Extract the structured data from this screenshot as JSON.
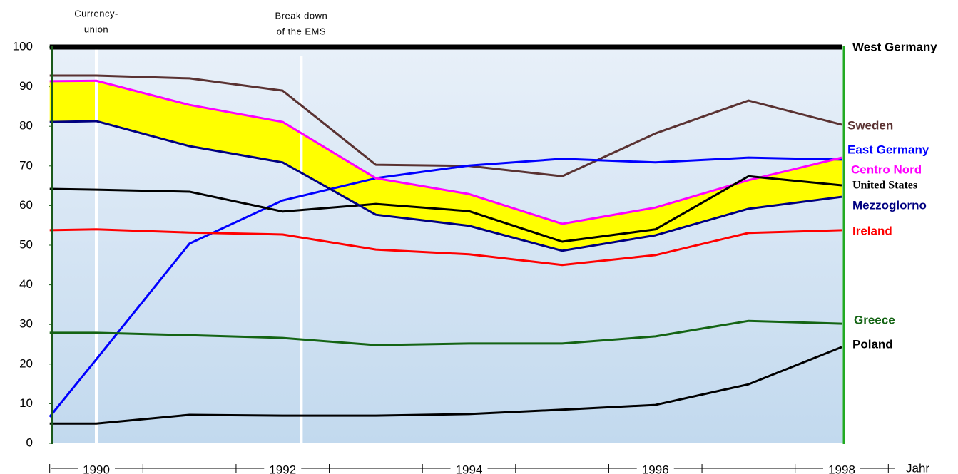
{
  "chart_data": {
    "type": "line",
    "x": [
      1989.5,
      1990,
      1991,
      1992,
      1993,
      1994,
      1995,
      1996,
      1997,
      1998
    ],
    "xlim": [
      1989.5,
      1998
    ],
    "xticks": [
      1990,
      1992,
      1994,
      1996,
      1998
    ],
    "x_label": "Jahr",
    "ylim": [
      0,
      100
    ],
    "yticks": [
      0,
      10,
      20,
      30,
      40,
      50,
      60,
      70,
      80,
      90,
      100
    ],
    "annotations": [
      {
        "lines": [
          "Currency-",
          "union"
        ],
        "x": 1990
      },
      {
        "lines": [
          "Break down",
          "of the EMS"
        ],
        "x": 1992.2
      }
    ],
    "band": {
      "between": [
        "Centro Nord",
        "Mezzoglorno"
      ],
      "color": "#ffff00"
    },
    "series": [
      {
        "name": "West Germany",
        "color": "#000000",
        "values": [
          100,
          100,
          100,
          100,
          100,
          100,
          100,
          100,
          100,
          100
        ]
      },
      {
        "name": "Sweden",
        "color": "#5a3232",
        "values": [
          92.8,
          92.8,
          92.1,
          89,
          70.3,
          70,
          67.4,
          78.2,
          86.5,
          80.4
        ]
      },
      {
        "name": "East Germany",
        "color": "#0000ff",
        "values": [
          6.7,
          21.2,
          50.4,
          61.3,
          66.9,
          70.1,
          71.8,
          70.9,
          72.1,
          71.6
        ]
      },
      {
        "name": "Centro Nord",
        "color": "#ff00ff",
        "values": [
          91.4,
          91.5,
          85.4,
          81.1,
          66.9,
          62.9,
          55.4,
          59.5,
          66.4,
          72.1
        ]
      },
      {
        "name": "United States",
        "color": "#000000",
        "values": [
          64.2,
          64,
          63.5,
          58.5,
          60.4,
          58.6,
          50.9,
          54,
          67.4,
          65.1
        ]
      },
      {
        "name": "Mezzoglorno",
        "color": "#000080",
        "values": [
          81.1,
          81.3,
          75,
          70.9,
          57.7,
          54.9,
          48.6,
          52.5,
          59.2,
          62.2
        ]
      },
      {
        "name": "Ireland",
        "color": "#ff0000",
        "values": [
          53.8,
          54,
          53.2,
          52.7,
          48.9,
          47.7,
          45,
          47.5,
          53.1,
          53.8
        ]
      },
      {
        "name": "Greece",
        "color": "#146414",
        "values": [
          27.9,
          27.9,
          27.3,
          26.6,
          24.8,
          25.2,
          25.2,
          27,
          30.9,
          30.2
        ]
      },
      {
        "name": "Poland",
        "color": "#000000",
        "values": [
          5,
          5,
          7.2,
          7,
          7,
          7.4,
          8.5,
          9.7,
          14.9,
          24.3
        ]
      }
    ]
  }
}
